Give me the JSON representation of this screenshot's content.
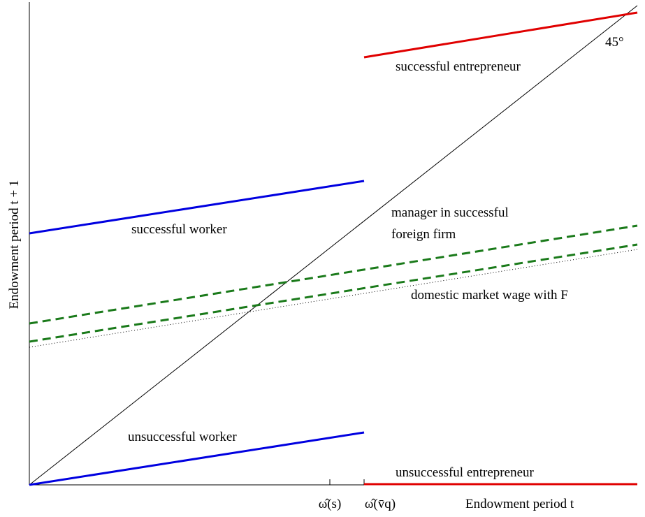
{
  "axes": {
    "y_label": "Endowment period t + 1",
    "x_label": "Endowment period t",
    "x_tick_1": "ω̂(s)",
    "x_tick_2": "ω̂(v̄q)",
    "diagonal_label": "45°"
  },
  "lines": {
    "successful_entrepreneur": "successful entrepreneur",
    "successful_worker": "successful worker",
    "manager_line_1": "manager in successful",
    "manager_line_2": "foreign firm",
    "domestic_wage": "domestic market wage with F",
    "unsuccessful_worker": "unsuccessful worker",
    "unsuccessful_entrepreneur": "unsuccessful entrepreneur"
  }
}
